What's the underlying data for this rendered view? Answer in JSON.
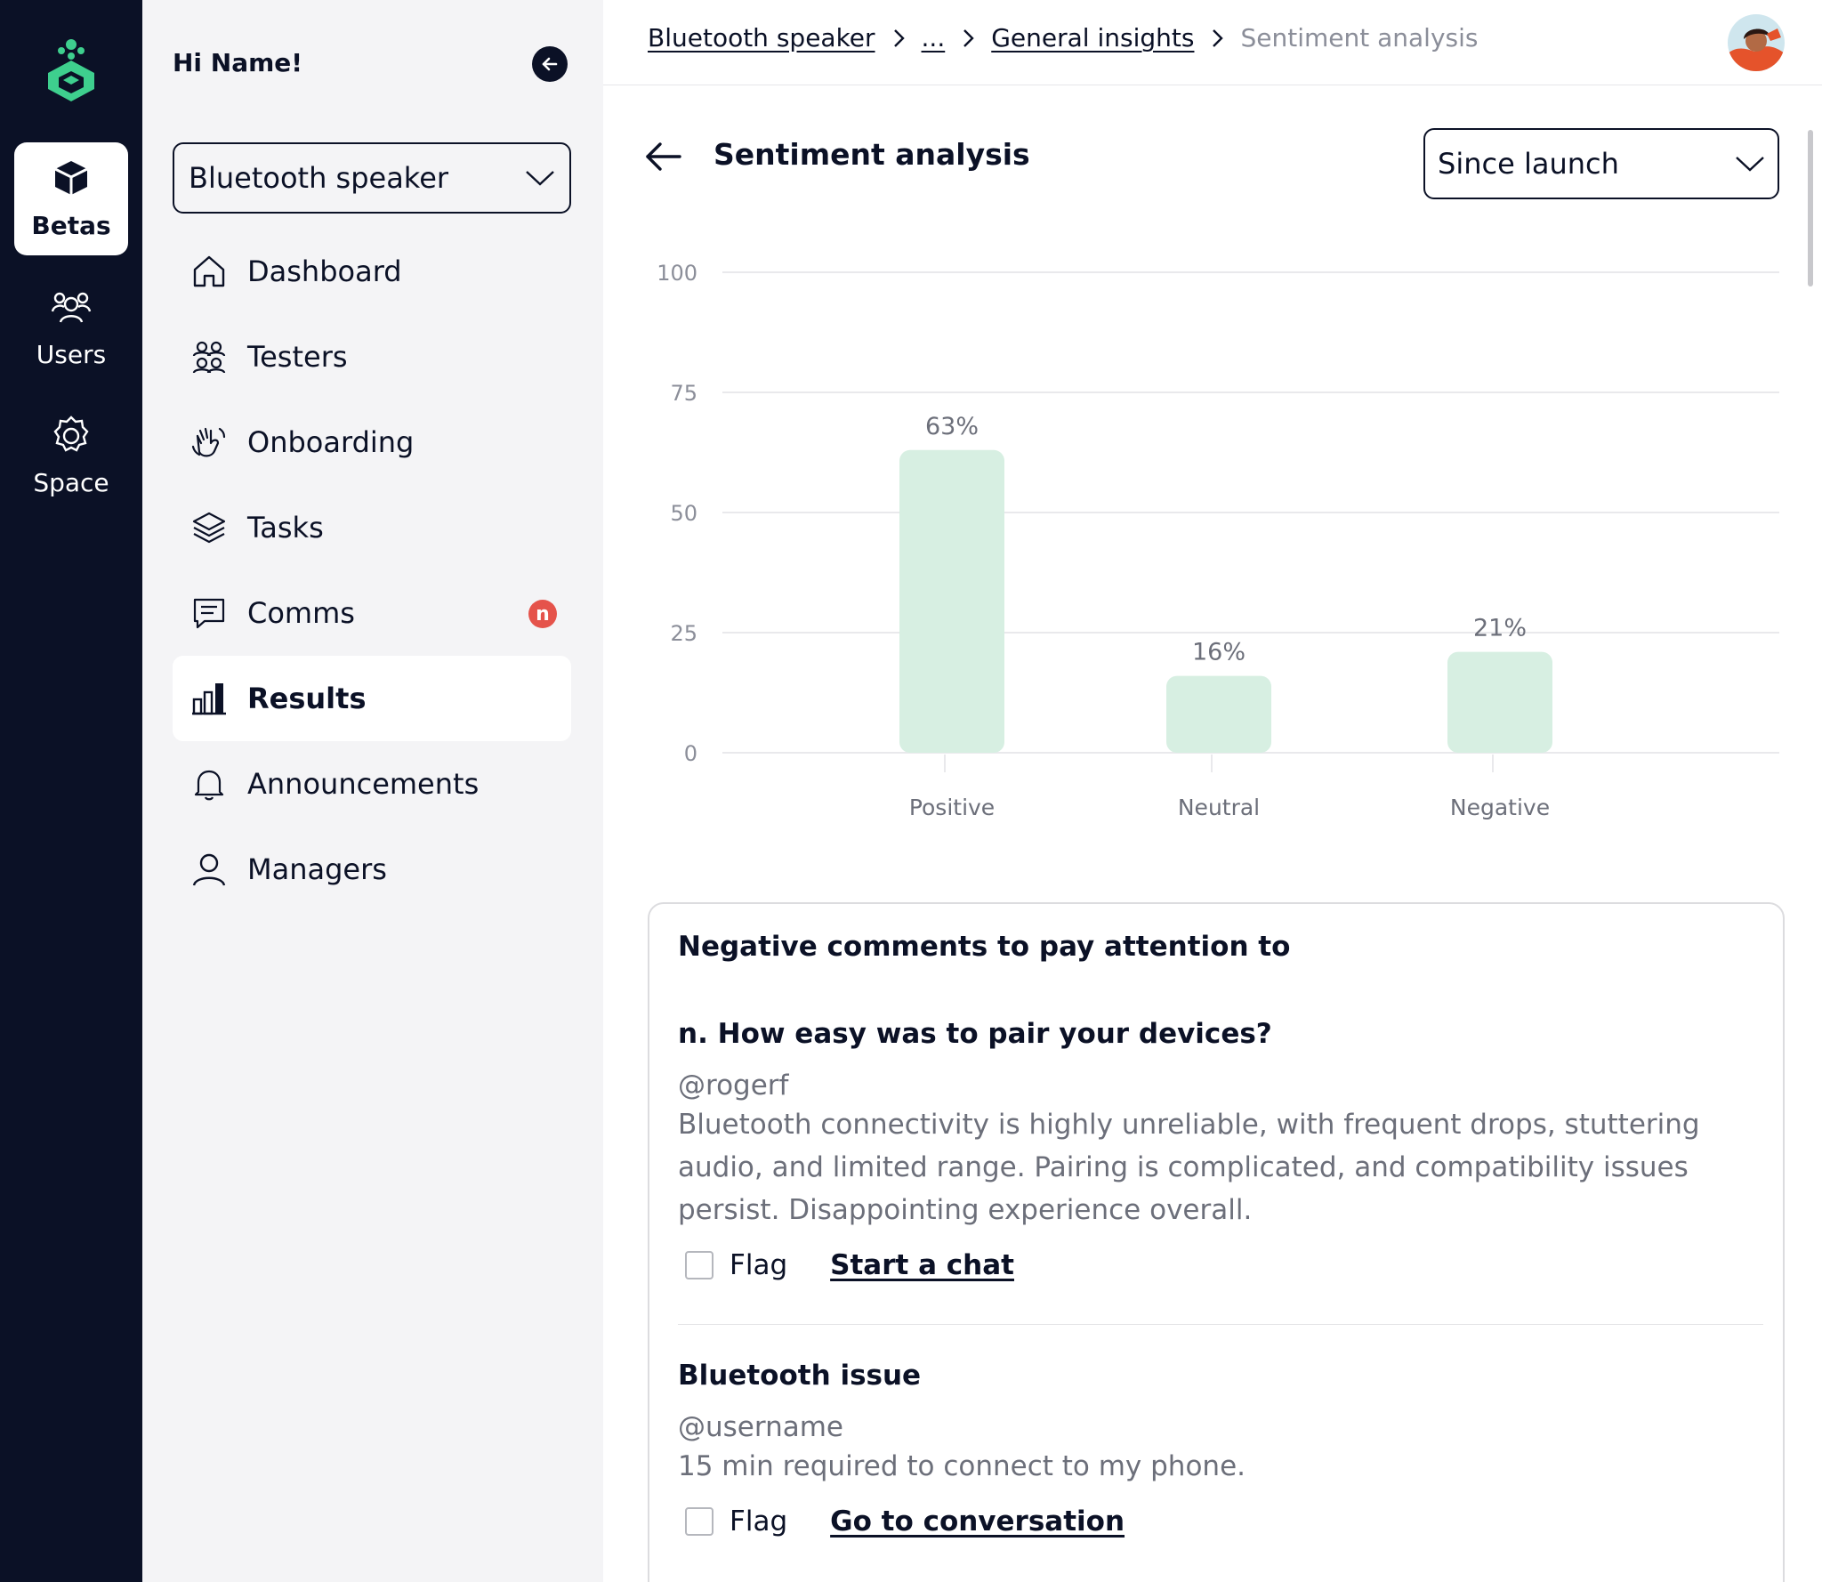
{
  "rail": {
    "items": [
      {
        "label": "Betas",
        "icon": "cube-icon"
      },
      {
        "label": "Users",
        "icon": "users-icon"
      },
      {
        "label": "Space",
        "icon": "gear-icon"
      }
    ]
  },
  "sidebar": {
    "greeting": "Hi Name!",
    "project": "Bluetooth speaker",
    "nav": [
      {
        "label": "Dashboard",
        "icon": "home-icon"
      },
      {
        "label": "Testers",
        "icon": "testers-icon"
      },
      {
        "label": "Onboarding",
        "icon": "wave-hand-icon"
      },
      {
        "label": "Tasks",
        "icon": "layers-icon"
      },
      {
        "label": "Comms",
        "icon": "chat-icon",
        "badge": "n"
      },
      {
        "label": "Results",
        "icon": "bar-chart-icon"
      },
      {
        "label": "Announcements",
        "icon": "bell-icon"
      },
      {
        "label": "Managers",
        "icon": "user-icon"
      }
    ]
  },
  "header": {
    "breadcrumbs": [
      "Bluetooth speaker",
      "...",
      "General insights"
    ],
    "current": "Sentiment analysis"
  },
  "main": {
    "title": "Sentiment analysis",
    "period": "Since launch"
  },
  "chart_data": {
    "type": "bar",
    "categories": [
      "Positive",
      "Neutral",
      "Negative"
    ],
    "values": [
      63,
      16,
      21
    ],
    "data_labels": [
      "63%",
      "16%",
      "21%"
    ],
    "yticks": [
      0,
      25,
      50,
      75,
      100
    ],
    "ylim": [
      0,
      100
    ],
    "grid": true,
    "colors": {
      "bar": "#d7efe2",
      "grid": "#e9e9ec",
      "tick_text": "#8b8e99",
      "label_text": "#6c6f7a"
    }
  },
  "comments": {
    "title": "Negative comments to pay attention to",
    "items": [
      {
        "title": "n. How easy was to pair your devices?",
        "user": "@rogerf",
        "body": "Bluetooth connectivity is highly unreliable, with frequent drops, stuttering audio, and limited range. Pairing is complicated, and compatibility issues persist. Disappointing experience overall.",
        "flag_label": "Flag",
        "action": "Start a chat"
      },
      {
        "title": "Bluetooth issue",
        "user": "@username",
        "body": "15 min required to connect to my phone.",
        "flag_label": "Flag",
        "action": "Go to conversation"
      }
    ]
  },
  "colors": {
    "navy": "#0b1126",
    "brand_green": "#3ecf8e",
    "badge_red": "#e5534b",
    "sidebar_bg": "#f4f4f6"
  }
}
